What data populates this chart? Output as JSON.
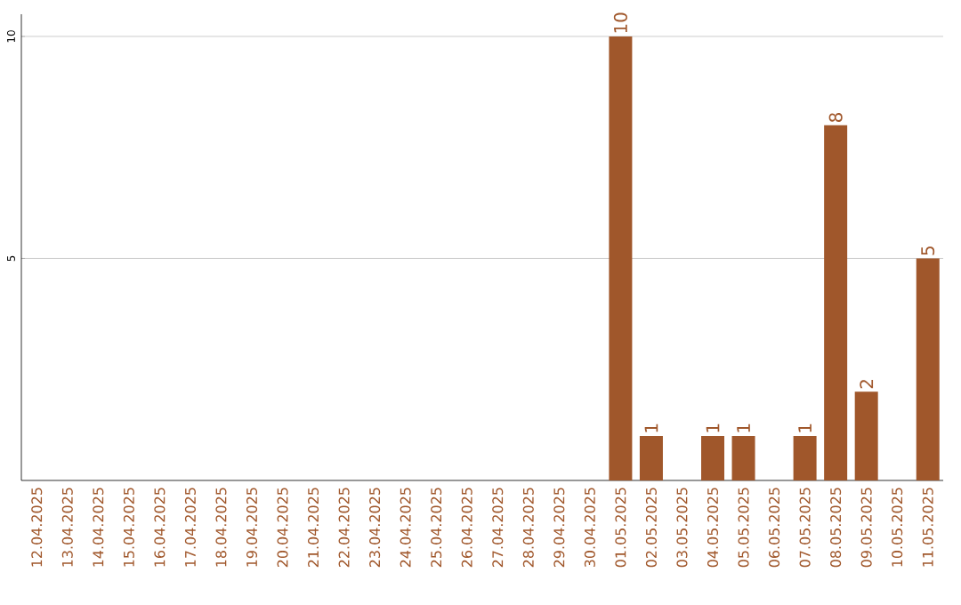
{
  "chart_data": {
    "type": "bar",
    "categories": [
      "12.04.2025",
      "13.04.2025",
      "14.04.2025",
      "15.04.2025",
      "16.04.2025",
      "17.04.2025",
      "18.04.2025",
      "19.04.2025",
      "20.04.2025",
      "21.04.2025",
      "22.04.2025",
      "23.04.2025",
      "24.04.2025",
      "25.04.2025",
      "26.04.2025",
      "27.04.2025",
      "28.04.2025",
      "29.04.2025",
      "30.04.2025",
      "01.05.2025",
      "02.05.2025",
      "03.05.2025",
      "04.05.2025",
      "05.05.2025",
      "06.05.2025",
      "07.05.2025",
      "08.05.2025",
      "09.05.2025",
      "10.05.2025",
      "11.05.2025"
    ],
    "values": [
      0,
      0,
      0,
      0,
      0,
      0,
      0,
      0,
      0,
      0,
      0,
      0,
      0,
      0,
      0,
      0,
      0,
      0,
      0,
      10,
      1,
      0,
      1,
      1,
      0,
      1,
      8,
      2,
      0,
      5
    ],
    "value_labels": [
      null,
      null,
      null,
      null,
      null,
      null,
      null,
      null,
      null,
      null,
      null,
      null,
      null,
      null,
      null,
      null,
      null,
      null,
      null,
      "10",
      "1",
      null,
      "1",
      "1",
      null,
      "1",
      "8",
      "2",
      null,
      "5"
    ],
    "color": "#a0572b",
    "ylim": [
      0,
      10.5
    ],
    "yticks": [
      5,
      10
    ],
    "grid": "y"
  }
}
